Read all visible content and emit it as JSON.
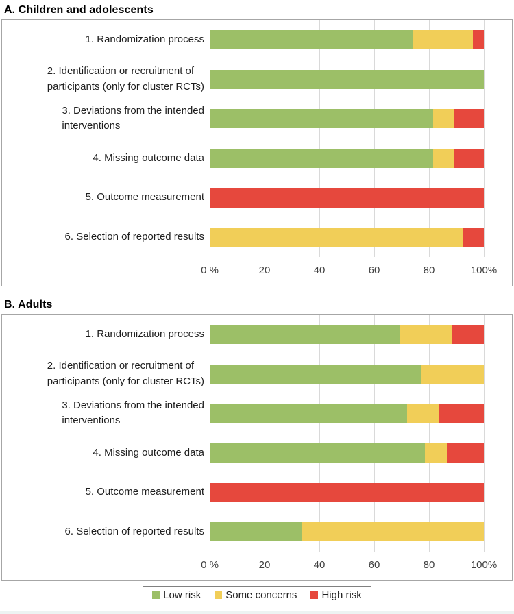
{
  "colors": {
    "low": "#9CBF67",
    "some": "#F1CE58",
    "high": "#E6483D",
    "gridline": "#D9D9D9",
    "panel_border": "#A6A6A6",
    "legend_border": "#808080",
    "text": "#1F1F1F",
    "axis_text": "#404040",
    "bottom_strip": "#EDF3F2"
  },
  "legend": {
    "items": [
      {
        "key": "low",
        "label": "Low risk"
      },
      {
        "key": "some",
        "label": "Some concerns"
      },
      {
        "key": "high",
        "label": "High risk"
      }
    ],
    "position": "bottom-center-shared"
  },
  "chart_data": [
    {
      "type": "bar",
      "stacked": true,
      "orientation": "horizontal",
      "title": "A. Children and adolescents",
      "categories": [
        "1. Randomization process",
        "2. Identification or recruitment of\nparticipants (only for cluster RCTs)",
        "3. Deviations from the intended\ninterventions",
        "4. Missing outcome data",
        "5. Outcome measurement",
        "6. Selection of reported results"
      ],
      "series": [
        {
          "name": "Low risk",
          "key": "low",
          "values": [
            74,
            100,
            81.5,
            81.5,
            0,
            0
          ]
        },
        {
          "name": "Some concerns",
          "key": "some",
          "values": [
            22,
            0,
            7.5,
            7.5,
            0,
            92.5
          ]
        },
        {
          "name": "High risk",
          "key": "high",
          "values": [
            4,
            0,
            11,
            11,
            100,
            7.5
          ]
        }
      ],
      "unit": "percent of studies",
      "xlim": [
        0,
        100
      ],
      "x_ticks": [
        "0 %",
        "20",
        "40",
        "60",
        "80",
        "100%"
      ],
      "grid": true
    },
    {
      "type": "bar",
      "stacked": true,
      "orientation": "horizontal",
      "title": "B. Adults",
      "categories": [
        "1. Randomization process",
        "2. Identification or recruitment of\nparticipants (only for cluster RCTs)",
        "3. Deviations from the intended\ninterventions",
        "4. Missing outcome data",
        "5. Outcome measurement",
        "6. Selection of reported results"
      ],
      "series": [
        {
          "name": "Low risk",
          "key": "low",
          "values": [
            69.5,
            77,
            72,
            78.5,
            0,
            33.5
          ]
        },
        {
          "name": "Some concerns",
          "key": "some",
          "values": [
            19,
            23,
            11.5,
            8,
            0,
            66.5
          ]
        },
        {
          "name": "High risk",
          "key": "high",
          "values": [
            11.5,
            0,
            16.5,
            13.5,
            100,
            0
          ]
        }
      ],
      "unit": "percent of studies",
      "xlim": [
        0,
        100
      ],
      "x_ticks": [
        "0 %",
        "20",
        "40",
        "60",
        "80",
        "100%"
      ],
      "grid": true
    }
  ]
}
